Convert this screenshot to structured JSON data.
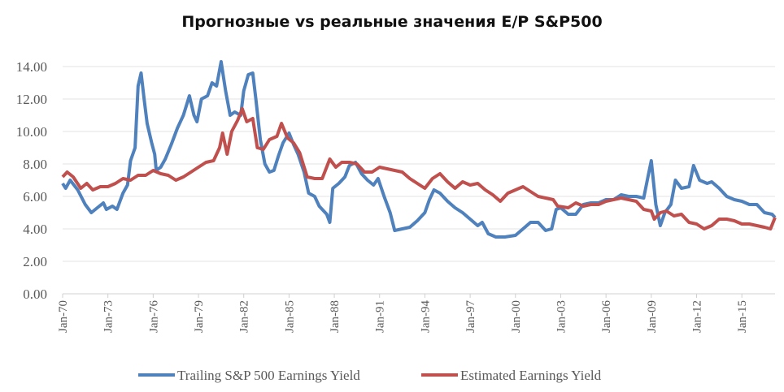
{
  "chart_data": {
    "type": "line",
    "title": "Прогнозные vs реальные значения E/P S&P500",
    "xlabel": "",
    "ylabel": "",
    "ylim": [
      0,
      14
    ],
    "xlim": [
      1970,
      2017.2
    ],
    "y_ticks": [
      "0.00",
      "2.00",
      "4.00",
      "6.00",
      "8.00",
      "10.00",
      "12.00",
      "14.00"
    ],
    "x_ticks": [
      {
        "label": "Jan-70",
        "x": 1970
      },
      {
        "label": "Jan-73",
        "x": 1973
      },
      {
        "label": "Jan-76",
        "x": 1976
      },
      {
        "label": "Jan-79",
        "x": 1979
      },
      {
        "label": "Jan-82",
        "x": 1982
      },
      {
        "label": "Jan-85",
        "x": 1985
      },
      {
        "label": "Jan-88",
        "x": 1988
      },
      {
        "label": "Jan-91",
        "x": 1991
      },
      {
        "label": "Jan-94",
        "x": 1994
      },
      {
        "label": "Jan-97",
        "x": 1997
      },
      {
        "label": "Jan-00",
        "x": 2000
      },
      {
        "label": "Jan-03",
        "x": 2003
      },
      {
        "label": "Jan-06",
        "x": 2006
      },
      {
        "label": "Jan-09",
        "x": 2009
      },
      {
        "label": "Jan-12",
        "x": 2012
      },
      {
        "label": "Jan-15",
        "x": 2015
      }
    ],
    "grid": true,
    "legend_position": "bottom",
    "series": [
      {
        "name": "Trailing S&P 500 Earnings Yield",
        "color": "#4F81BD",
        "points": [
          [
            1970.0,
            6.8
          ],
          [
            1970.2,
            6.5
          ],
          [
            1970.5,
            7.0
          ],
          [
            1971.0,
            6.4
          ],
          [
            1971.5,
            5.5
          ],
          [
            1971.9,
            5.0
          ],
          [
            1972.3,
            5.3
          ],
          [
            1972.7,
            5.6
          ],
          [
            1972.9,
            5.2
          ],
          [
            1973.3,
            5.4
          ],
          [
            1973.6,
            5.2
          ],
          [
            1974.0,
            6.2
          ],
          [
            1974.3,
            6.7
          ],
          [
            1974.5,
            8.2
          ],
          [
            1974.8,
            9.0
          ],
          [
            1975.0,
            12.8
          ],
          [
            1975.2,
            13.6
          ],
          [
            1975.4,
            12.0
          ],
          [
            1975.6,
            10.5
          ],
          [
            1975.9,
            9.3
          ],
          [
            1976.1,
            8.6
          ],
          [
            1976.2,
            7.6
          ],
          [
            1976.5,
            7.8
          ],
          [
            1976.8,
            8.3
          ],
          [
            1977.2,
            9.2
          ],
          [
            1977.6,
            10.2
          ],
          [
            1978.0,
            11.0
          ],
          [
            1978.4,
            12.2
          ],
          [
            1978.7,
            11.0
          ],
          [
            1978.9,
            10.6
          ],
          [
            1979.2,
            12.0
          ],
          [
            1979.6,
            12.2
          ],
          [
            1979.9,
            13.0
          ],
          [
            1980.2,
            12.8
          ],
          [
            1980.5,
            14.3
          ],
          [
            1980.8,
            12.5
          ],
          [
            1981.1,
            11.0
          ],
          [
            1981.4,
            11.2
          ],
          [
            1981.8,
            11.0
          ],
          [
            1982.0,
            12.5
          ],
          [
            1982.3,
            13.5
          ],
          [
            1982.6,
            13.6
          ],
          [
            1982.8,
            12.0
          ],
          [
            1983.1,
            9.5
          ],
          [
            1983.4,
            8.0
          ],
          [
            1983.7,
            7.5
          ],
          [
            1984.0,
            7.6
          ],
          [
            1984.3,
            8.5
          ],
          [
            1984.6,
            9.3
          ],
          [
            1985.0,
            9.9
          ],
          [
            1985.3,
            9.2
          ],
          [
            1985.6,
            8.6
          ],
          [
            1986.0,
            7.5
          ],
          [
            1986.3,
            6.2
          ],
          [
            1986.7,
            6.0
          ],
          [
            1987.0,
            5.4
          ],
          [
            1987.5,
            4.9
          ],
          [
            1987.7,
            4.4
          ],
          [
            1987.9,
            6.5
          ],
          [
            1988.3,
            6.8
          ],
          [
            1988.7,
            7.2
          ],
          [
            1989.0,
            7.9
          ],
          [
            1989.4,
            8.1
          ],
          [
            1989.8,
            7.4
          ],
          [
            1990.2,
            7.0
          ],
          [
            1990.6,
            6.7
          ],
          [
            1990.9,
            7.1
          ],
          [
            1991.3,
            6.0
          ],
          [
            1991.7,
            5.0
          ],
          [
            1992.0,
            3.9
          ],
          [
            1992.5,
            4.0
          ],
          [
            1993.0,
            4.1
          ],
          [
            1993.5,
            4.5
          ],
          [
            1994.0,
            5.0
          ],
          [
            1994.3,
            5.8
          ],
          [
            1994.6,
            6.4
          ],
          [
            1995.0,
            6.2
          ],
          [
            1995.5,
            5.7
          ],
          [
            1996.0,
            5.3
          ],
          [
            1996.5,
            5.0
          ],
          [
            1997.0,
            4.6
          ],
          [
            1997.5,
            4.2
          ],
          [
            1997.8,
            4.4
          ],
          [
            1998.2,
            3.7
          ],
          [
            1998.7,
            3.5
          ],
          [
            1999.3,
            3.5
          ],
          [
            2000.0,
            3.6
          ],
          [
            2000.5,
            4.0
          ],
          [
            2001.0,
            4.4
          ],
          [
            2001.5,
            4.4
          ],
          [
            2002.0,
            3.9
          ],
          [
            2002.4,
            4.0
          ],
          [
            2002.7,
            5.2
          ],
          [
            2003.0,
            5.3
          ],
          [
            2003.5,
            4.9
          ],
          [
            2004.0,
            4.9
          ],
          [
            2004.5,
            5.5
          ],
          [
            2005.0,
            5.6
          ],
          [
            2005.5,
            5.6
          ],
          [
            2006.0,
            5.8
          ],
          [
            2006.5,
            5.8
          ],
          [
            2007.0,
            6.1
          ],
          [
            2007.5,
            6.0
          ],
          [
            2008.0,
            6.0
          ],
          [
            2008.5,
            5.9
          ],
          [
            2008.8,
            7.3
          ],
          [
            2009.0,
            8.2
          ],
          [
            2009.3,
            5.5
          ],
          [
            2009.6,
            4.2
          ],
          [
            2009.9,
            5.0
          ],
          [
            2010.3,
            5.5
          ],
          [
            2010.6,
            7.0
          ],
          [
            2011.0,
            6.5
          ],
          [
            2011.5,
            6.6
          ],
          [
            2011.8,
            7.9
          ],
          [
            2012.2,
            7.0
          ],
          [
            2012.7,
            6.8
          ],
          [
            2013.0,
            6.9
          ],
          [
            2013.5,
            6.5
          ],
          [
            2014.0,
            6.0
          ],
          [
            2014.5,
            5.8
          ],
          [
            2015.0,
            5.7
          ],
          [
            2015.5,
            5.5
          ],
          [
            2016.0,
            5.5
          ],
          [
            2016.5,
            5.0
          ],
          [
            2017.0,
            4.9
          ],
          [
            2017.2,
            4.7
          ]
        ]
      },
      {
        "name": "Estimated Earnings Yield",
        "color": "#C0504D",
        "points": [
          [
            1970.0,
            7.2
          ],
          [
            1970.3,
            7.5
          ],
          [
            1970.7,
            7.2
          ],
          [
            1971.2,
            6.5
          ],
          [
            1971.6,
            6.8
          ],
          [
            1972.0,
            6.4
          ],
          [
            1972.5,
            6.6
          ],
          [
            1973.0,
            6.6
          ],
          [
            1973.5,
            6.8
          ],
          [
            1974.0,
            7.1
          ],
          [
            1974.5,
            7.0
          ],
          [
            1975.0,
            7.3
          ],
          [
            1975.5,
            7.3
          ],
          [
            1976.0,
            7.6
          ],
          [
            1976.5,
            7.4
          ],
          [
            1977.0,
            7.3
          ],
          [
            1977.5,
            7.0
          ],
          [
            1978.0,
            7.2
          ],
          [
            1978.5,
            7.5
          ],
          [
            1979.0,
            7.8
          ],
          [
            1979.5,
            8.1
          ],
          [
            1980.0,
            8.2
          ],
          [
            1980.4,
            9.0
          ],
          [
            1980.6,
            9.9
          ],
          [
            1980.9,
            8.6
          ],
          [
            1981.2,
            10.0
          ],
          [
            1981.6,
            10.7
          ],
          [
            1981.9,
            11.4
          ],
          [
            1982.2,
            10.6
          ],
          [
            1982.6,
            10.8
          ],
          [
            1982.9,
            9.0
          ],
          [
            1983.3,
            8.9
          ],
          [
            1983.7,
            9.5
          ],
          [
            1984.2,
            9.7
          ],
          [
            1984.5,
            10.5
          ],
          [
            1984.9,
            9.6
          ],
          [
            1985.3,
            9.3
          ],
          [
            1985.7,
            8.7
          ],
          [
            1986.2,
            7.2
          ],
          [
            1986.7,
            7.1
          ],
          [
            1987.2,
            7.1
          ],
          [
            1987.7,
            8.3
          ],
          [
            1988.1,
            7.8
          ],
          [
            1988.5,
            8.1
          ],
          [
            1989.0,
            8.1
          ],
          [
            1989.5,
            8.0
          ],
          [
            1990.0,
            7.5
          ],
          [
            1990.5,
            7.5
          ],
          [
            1991.0,
            7.8
          ],
          [
            1991.5,
            7.7
          ],
          [
            1992.0,
            7.6
          ],
          [
            1992.5,
            7.5
          ],
          [
            1993.0,
            7.1
          ],
          [
            1993.5,
            6.8
          ],
          [
            1994.0,
            6.5
          ],
          [
            1994.5,
            7.1
          ],
          [
            1995.0,
            7.4
          ],
          [
            1995.5,
            6.9
          ],
          [
            1996.0,
            6.5
          ],
          [
            1996.5,
            6.9
          ],
          [
            1997.0,
            6.7
          ],
          [
            1997.5,
            6.8
          ],
          [
            1998.0,
            6.4
          ],
          [
            1998.5,
            6.1
          ],
          [
            1999.0,
            5.7
          ],
          [
            1999.5,
            6.2
          ],
          [
            2000.0,
            6.4
          ],
          [
            2000.5,
            6.6
          ],
          [
            2001.0,
            6.3
          ],
          [
            2001.5,
            6.0
          ],
          [
            2002.0,
            5.9
          ],
          [
            2002.5,
            5.8
          ],
          [
            2002.8,
            5.4
          ],
          [
            2003.5,
            5.3
          ],
          [
            2004.0,
            5.6
          ],
          [
            2004.5,
            5.4
          ],
          [
            2005.0,
            5.5
          ],
          [
            2005.5,
            5.5
          ],
          [
            2006.0,
            5.7
          ],
          [
            2006.5,
            5.8
          ],
          [
            2007.0,
            5.9
          ],
          [
            2007.5,
            5.8
          ],
          [
            2008.0,
            5.7
          ],
          [
            2008.5,
            5.2
          ],
          [
            2009.0,
            5.1
          ],
          [
            2009.2,
            4.6
          ],
          [
            2009.6,
            5.0
          ],
          [
            2010.0,
            5.1
          ],
          [
            2010.5,
            4.8
          ],
          [
            2011.0,
            4.9
          ],
          [
            2011.5,
            4.4
          ],
          [
            2012.0,
            4.3
          ],
          [
            2012.5,
            4.0
          ],
          [
            2013.0,
            4.2
          ],
          [
            2013.5,
            4.6
          ],
          [
            2014.0,
            4.6
          ],
          [
            2014.5,
            4.5
          ],
          [
            2015.0,
            4.3
          ],
          [
            2015.5,
            4.3
          ],
          [
            2016.0,
            4.2
          ],
          [
            2016.5,
            4.1
          ],
          [
            2016.9,
            4.0
          ],
          [
            2017.2,
            4.7
          ]
        ]
      }
    ]
  }
}
